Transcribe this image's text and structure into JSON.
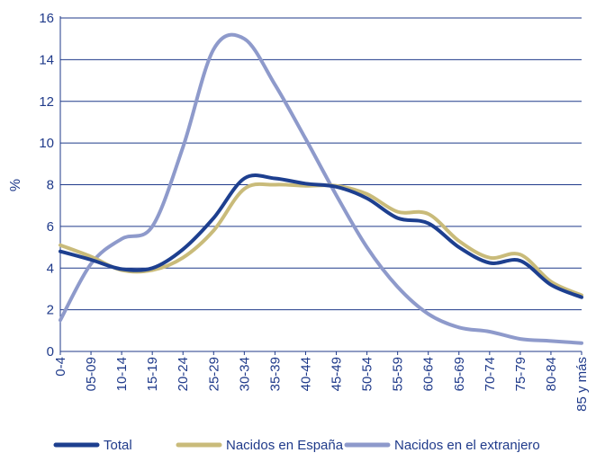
{
  "chart_data": {
    "type": "line",
    "title": "",
    "xlabel": "",
    "ylabel": "%",
    "ylim": [
      0,
      16
    ],
    "yticks": [
      0,
      2,
      4,
      6,
      8,
      10,
      12,
      14,
      16
    ],
    "grid": "horizontal",
    "legend_position": "bottom",
    "categories": [
      "0-4",
      "05-09",
      "10-14",
      "15-19",
      "20-24",
      "25-29",
      "30-34",
      "35-39",
      "40-44",
      "45-49",
      "50-54",
      "55-59",
      "60-64",
      "65-69",
      "70-74",
      "75-79",
      "80-84",
      "85 y más"
    ],
    "series": [
      {
        "name": "Total",
        "color": "#1d3f8f",
        "values": [
          4.8,
          4.4,
          3.95,
          4.0,
          4.9,
          6.4,
          8.3,
          8.3,
          8.05,
          7.9,
          7.35,
          6.4,
          6.15,
          5.0,
          4.25,
          4.35,
          3.2,
          2.6
        ]
      },
      {
        "name": "Nacidos en España",
        "color": "#c9bb7a",
        "values": [
          5.1,
          4.55,
          3.9,
          3.9,
          4.5,
          5.8,
          7.8,
          8.0,
          7.95,
          7.95,
          7.55,
          6.7,
          6.6,
          5.3,
          4.5,
          4.65,
          3.35,
          2.7
        ]
      },
      {
        "name": "Nacidos en el extranjero",
        "color": "#8e9acb",
        "values": [
          1.5,
          4.2,
          5.4,
          6.0,
          9.8,
          14.5,
          15.0,
          12.8,
          10.2,
          7.5,
          5.0,
          3.1,
          1.8,
          1.15,
          0.95,
          0.6,
          0.5,
          0.4
        ]
      }
    ]
  }
}
